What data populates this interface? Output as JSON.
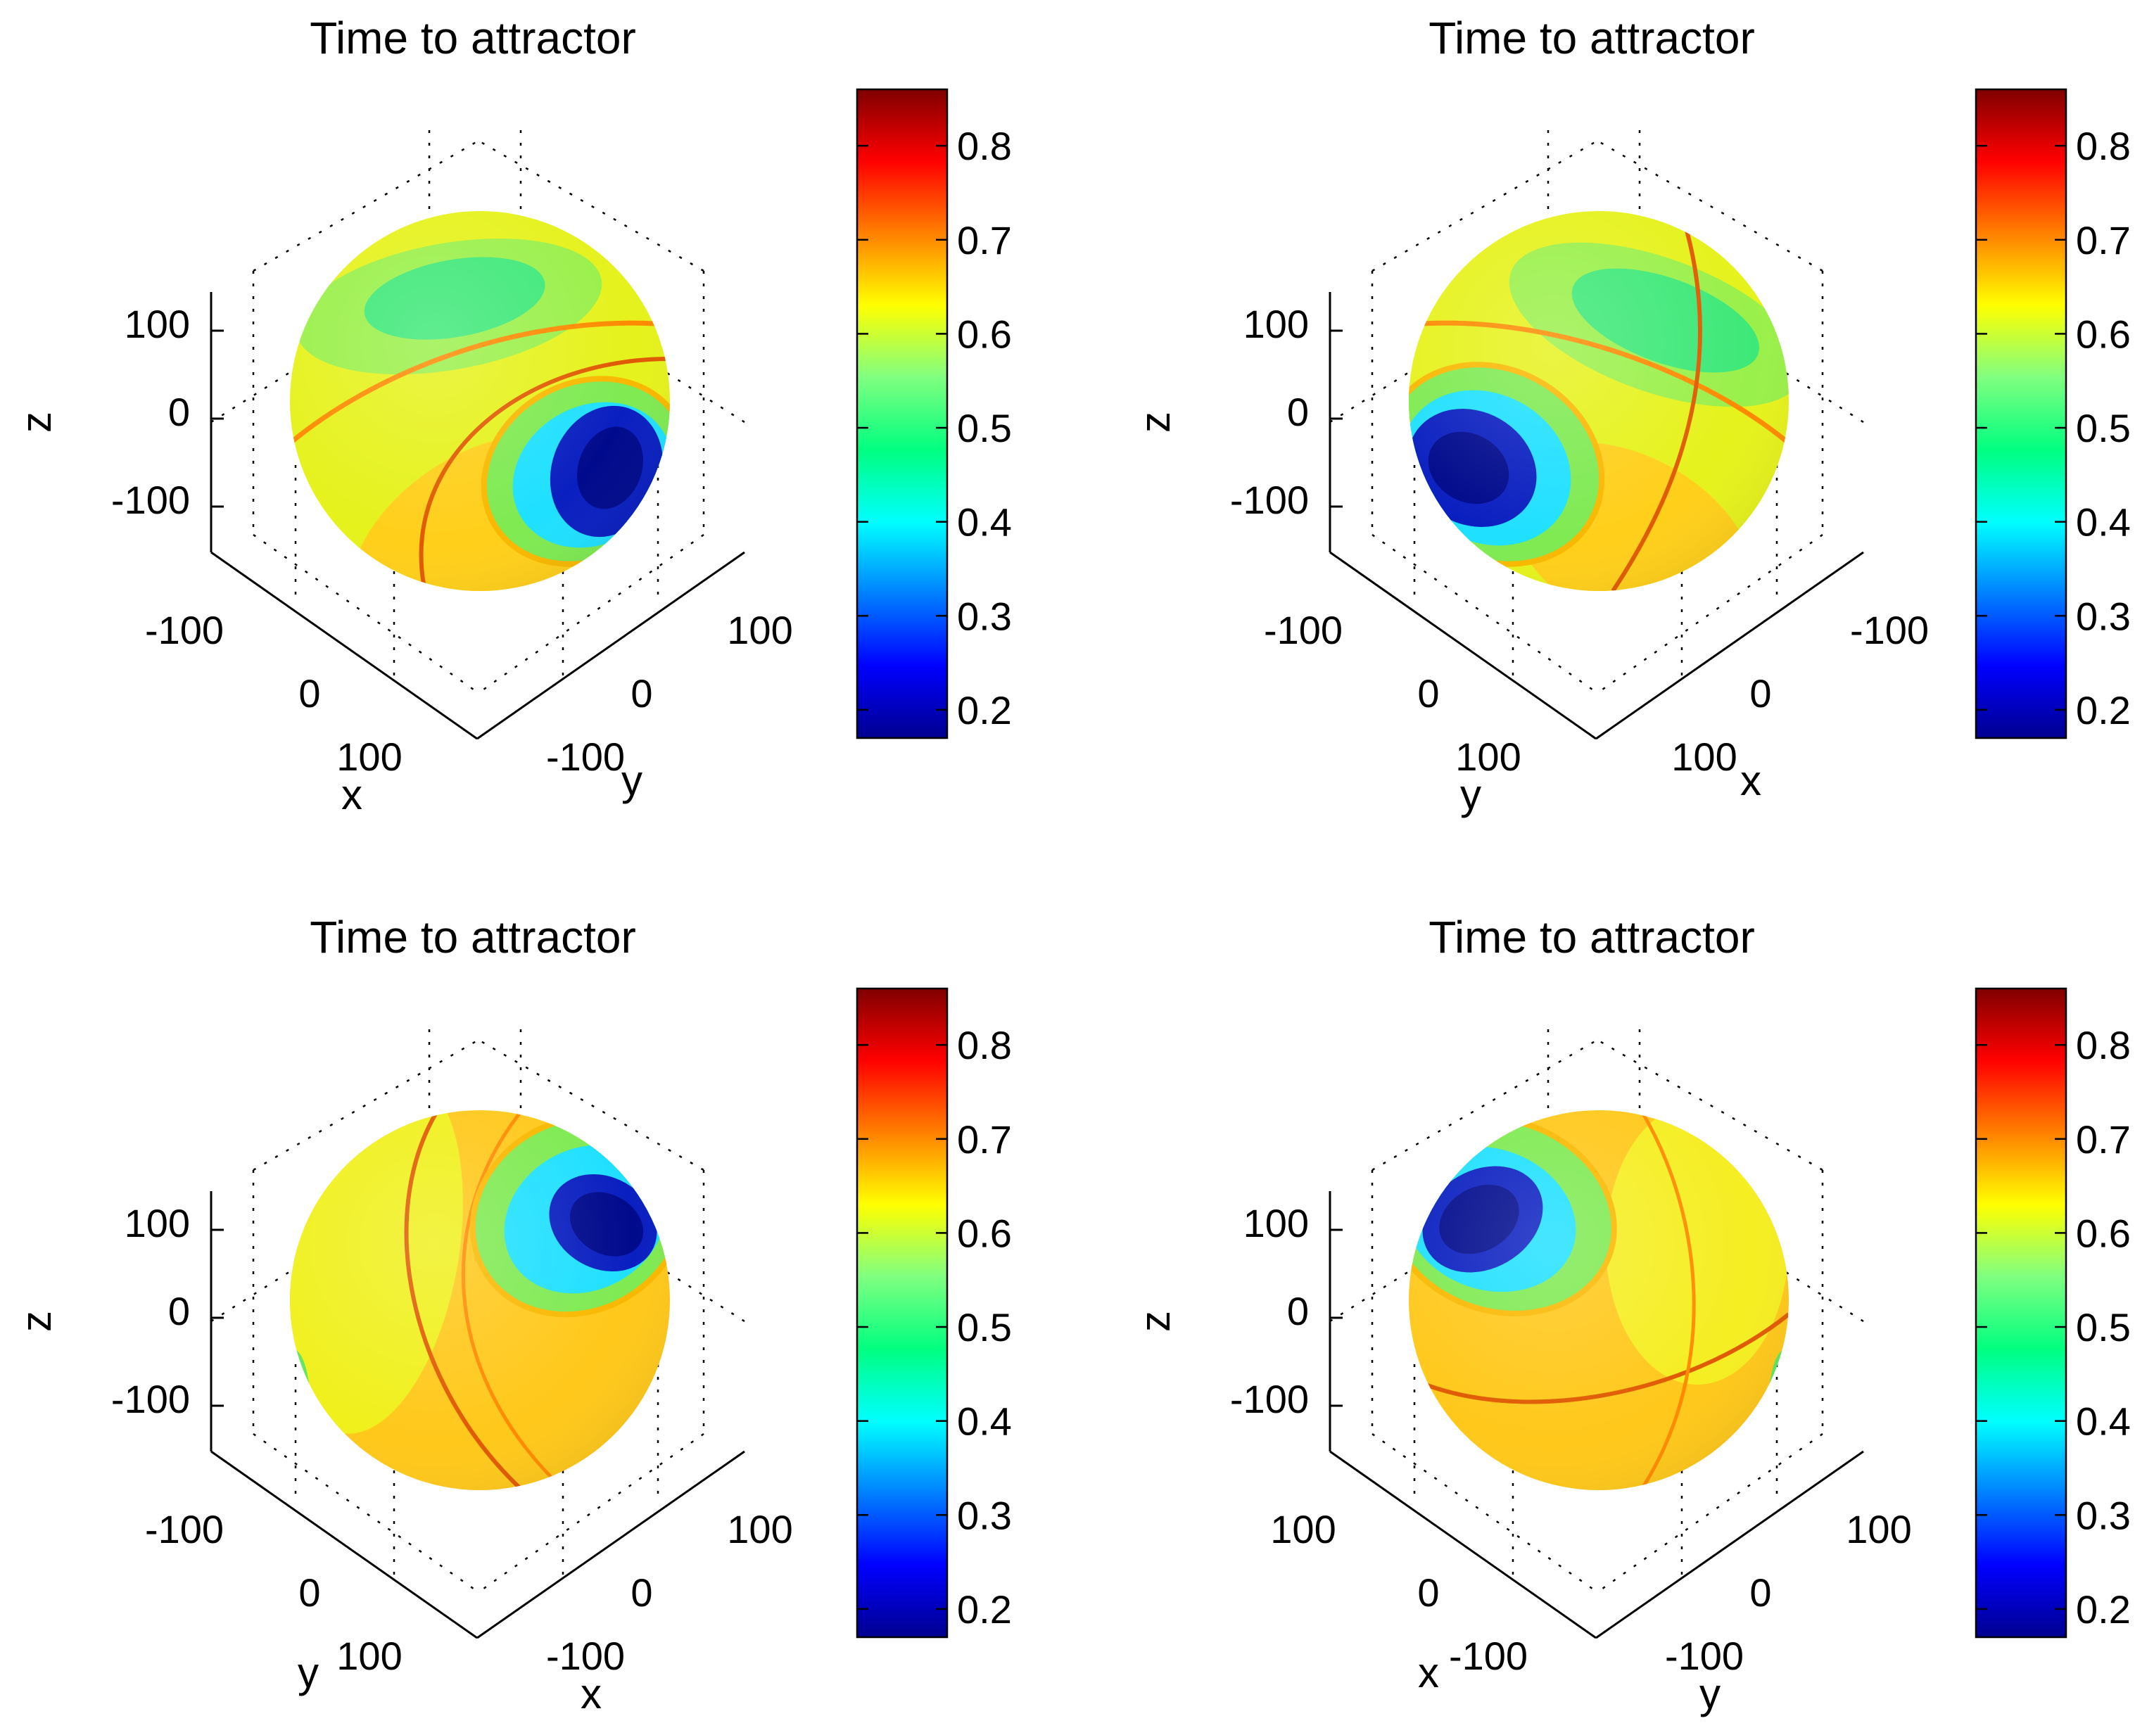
{
  "figure": {
    "colormap": [
      "#00008f",
      "#0000ff",
      "#0080ff",
      "#00ffff",
      "#00ff80",
      "#80ff80",
      "#ffff00",
      "#ff8000",
      "#ff0000",
      "#800000"
    ]
  },
  "chart_data": [
    {
      "type": "surface3d",
      "title": "Time to attractor",
      "xlabel": "x",
      "ylabel": "y",
      "zlabel": "z",
      "z_ticks": [
        "100",
        "0",
        "-100"
      ],
      "left_axis_ticks": [
        "-100",
        "0",
        "100"
      ],
      "right_axis_ticks": [
        "100",
        "0",
        "-100"
      ],
      "left_axis_label": "x",
      "right_axis_label": "y",
      "colorbar": {
        "range": [
          0.17,
          0.86
        ],
        "ticks": [
          0.2,
          0.3,
          0.4,
          0.5,
          0.6,
          0.7,
          0.8
        ],
        "tick_labels": [
          "0.2",
          "0.3",
          "0.4",
          "0.5",
          "0.6",
          "0.7",
          "0.8"
        ]
      }
    },
    {
      "type": "surface3d",
      "title": "Time to attractor",
      "xlabel": "x",
      "ylabel": "y",
      "zlabel": "z",
      "z_ticks": [
        "100",
        "0",
        "-100"
      ],
      "left_axis_ticks": [
        "-100",
        "0",
        "100"
      ],
      "right_axis_ticks": [
        "-100",
        "0",
        "100"
      ],
      "left_axis_label": "y",
      "right_axis_label": "x",
      "colorbar": {
        "range": [
          0.17,
          0.86
        ],
        "ticks": [
          0.2,
          0.3,
          0.4,
          0.5,
          0.6,
          0.7,
          0.8
        ],
        "tick_labels": [
          "0.2",
          "0.3",
          "0.4",
          "0.5",
          "0.6",
          "0.7",
          "0.8"
        ]
      }
    },
    {
      "type": "surface3d",
      "title": "Time to attractor",
      "xlabel": "x",
      "ylabel": "y",
      "zlabel": "z",
      "z_ticks": [
        "100",
        "0",
        "-100"
      ],
      "left_axis_ticks": [
        "-100",
        "0",
        "100"
      ],
      "right_axis_ticks": [
        "100",
        "0",
        "-100"
      ],
      "left_axis_label": "y",
      "right_axis_label": "x",
      "colorbar": {
        "range": [
          0.17,
          0.86
        ],
        "ticks": [
          0.2,
          0.3,
          0.4,
          0.5,
          0.6,
          0.7,
          0.8
        ],
        "tick_labels": [
          "0.2",
          "0.3",
          "0.4",
          "0.5",
          "0.6",
          "0.7",
          "0.8"
        ]
      }
    },
    {
      "type": "surface3d",
      "title": "Time to attractor",
      "xlabel": "x",
      "ylabel": "y",
      "zlabel": "z",
      "z_ticks": [
        "100",
        "0",
        "-100"
      ],
      "left_axis_ticks": [
        "100",
        "0",
        "-100"
      ],
      "right_axis_ticks": [
        "100",
        "0",
        "-100"
      ],
      "left_axis_label": "x",
      "right_axis_label": "y",
      "colorbar": {
        "range": [
          0.17,
          0.86
        ],
        "ticks": [
          0.2,
          0.3,
          0.4,
          0.5,
          0.6,
          0.7,
          0.8
        ],
        "tick_labels": [
          "0.2",
          "0.3",
          "0.4",
          "0.5",
          "0.6",
          "0.7",
          "0.8"
        ]
      }
    }
  ]
}
